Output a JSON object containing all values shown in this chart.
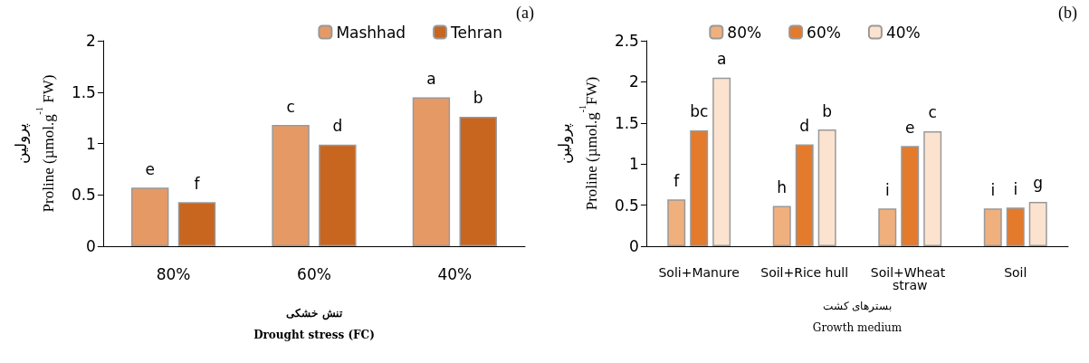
{
  "chart_data": [
    {
      "type": "bar",
      "title": "(a)",
      "ylabel": "پرولین\nProline (µmol.g$^{-1}$ FW)",
      "xlabel": "تنش خشکی\nDrought stress (FC)",
      "categories": [
        "80%",
        "60%",
        "40%"
      ],
      "series": [
        {
          "name": "Mashhad",
          "color": "#e59a66",
          "values": [
            0.57,
            1.18,
            1.45
          ],
          "value_labels": [
            "e",
            "c",
            "a"
          ]
        },
        {
          "name": "Tehran",
          "color": "#c8651f",
          "values": [
            0.43,
            0.99,
            1.26
          ],
          "value_labels": [
            "f",
            "d",
            "b"
          ]
        }
      ],
      "ylim": [
        0,
        2
      ],
      "yticks": [
        0,
        0.5,
        1,
        1.5,
        2
      ],
      "grid": false,
      "legend": "top right"
    },
    {
      "type": "bar",
      "title": "(b)",
      "ylabel": "پرولین\nProline (µmol.g$^{-1}$FW)",
      "xlabel": "بسترهای کشت\nGrowth medium",
      "categories": [
        "Soli+Manure",
        "Soil+Rice hull",
        "Soil+Wheat straw",
        "Soil"
      ],
      "series": [
        {
          "name": "80%",
          "color": "#f0b07e",
          "values": [
            0.57,
            0.49,
            0.46,
            0.46
          ],
          "value_labels": [
            "f",
            "h",
            "i",
            "i"
          ]
        },
        {
          "name": "60%",
          "color": "#e37a2c",
          "values": [
            1.41,
            1.24,
            1.22,
            0.47
          ],
          "value_labels": [
            "bc",
            "d",
            "e",
            "i"
          ]
        },
        {
          "name": "40%",
          "color": "#fbe3d0",
          "values": [
            2.05,
            1.42,
            1.4,
            0.54
          ],
          "value_labels": [
            "a",
            "b",
            "c",
            "g"
          ]
        }
      ],
      "ylim": [
        0,
        2.5
      ],
      "yticks": [
        0,
        0.5,
        1,
        1.5,
        2,
        2.5
      ],
      "grid": false,
      "legend": "top"
    }
  ]
}
